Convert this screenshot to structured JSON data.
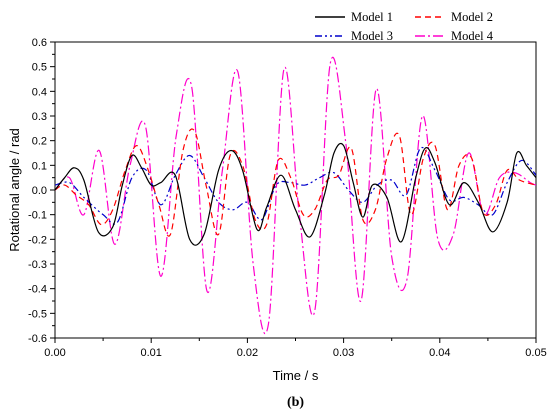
{
  "chart_data": {
    "type": "line",
    "xlabel": "Time / s",
    "ylabel": "Rotational angle / rad",
    "xlim": [
      0,
      0.05
    ],
    "ylim": [
      -0.6,
      0.6
    ],
    "xticks": [
      "0.00",
      "0.01",
      "0.02",
      "0.03",
      "0.04",
      "0.05"
    ],
    "yticks": [
      "-0.6",
      "-0.5",
      "-0.4",
      "-0.3",
      "-0.2",
      "-0.1",
      "0.0",
      "0.1",
      "0.2",
      "0.3",
      "0.4",
      "0.5",
      "0.6"
    ],
    "grid": false,
    "legend_position": "top-right",
    "panel_label": "(b)",
    "series": [
      {
        "name": "Model 1",
        "color": "#000000",
        "dash": "solid",
        "x": [
          0,
          0.001,
          0.002,
          0.003,
          0.0045,
          0.006,
          0.007,
          0.008,
          0.009,
          0.01,
          0.011,
          0.0125,
          0.014,
          0.0155,
          0.017,
          0.0183,
          0.0195,
          0.021,
          0.022,
          0.0235,
          0.025,
          0.0265,
          0.028,
          0.029,
          0.03,
          0.031,
          0.032,
          0.033,
          0.0345,
          0.036,
          0.0375,
          0.0385,
          0.0395,
          0.041,
          0.0425,
          0.044,
          0.0455,
          0.047,
          0.048,
          0.049,
          0.05
        ],
        "y": [
          0.0,
          0.05,
          0.09,
          0.04,
          -0.17,
          -0.15,
          0.02,
          0.14,
          0.09,
          0.02,
          0.03,
          0.06,
          -0.2,
          -0.18,
          0.08,
          0.16,
          0.08,
          -0.16,
          -0.07,
          0.06,
          -0.08,
          -0.19,
          -0.02,
          0.15,
          0.18,
          0.03,
          -0.11,
          0.02,
          -0.03,
          -0.21,
          0.05,
          0.17,
          0.11,
          -0.06,
          0.03,
          -0.05,
          -0.17,
          -0.05,
          0.15,
          0.1,
          0.05
        ]
      },
      {
        "name": "Model 2",
        "color": "#ff0000",
        "dash": "6 4",
        "x": [
          0,
          0.001,
          0.0022,
          0.0035,
          0.0048,
          0.006,
          0.0073,
          0.0085,
          0.0097,
          0.0108,
          0.012,
          0.0133,
          0.0145,
          0.0157,
          0.017,
          0.0182,
          0.0195,
          0.0208,
          0.022,
          0.0232,
          0.0245,
          0.0258,
          0.027,
          0.0283,
          0.0295,
          0.0308,
          0.032,
          0.0333,
          0.0345,
          0.0358,
          0.037,
          0.0383,
          0.0395,
          0.0408,
          0.042,
          0.0433,
          0.0445,
          0.0458,
          0.047,
          0.0483,
          0.05
        ],
        "y": [
          0.0,
          0.02,
          -0.02,
          -0.06,
          -0.14,
          -0.08,
          0.08,
          0.18,
          0.08,
          -0.06,
          -0.18,
          0.16,
          0.24,
          0.02,
          -0.18,
          0.14,
          0.1,
          -0.12,
          -0.14,
          0.12,
          0.05,
          -0.1,
          -0.08,
          0.04,
          0.06,
          0.17,
          -0.12,
          -0.08,
          0.13,
          0.22,
          -0.1,
          0.13,
          0.18,
          -0.08,
          0.1,
          0.13,
          -0.09,
          -0.06,
          0.08,
          0.04,
          0.02
        ]
      },
      {
        "name": "Model 3",
        "color": "#0000cc",
        "dash": "7 3 2 3 2 3",
        "x": [
          0,
          0.0015,
          0.003,
          0.005,
          0.0065,
          0.008,
          0.0095,
          0.011,
          0.0125,
          0.014,
          0.0155,
          0.017,
          0.0185,
          0.02,
          0.0215,
          0.023,
          0.0245,
          0.026,
          0.0275,
          0.029,
          0.0305,
          0.032,
          0.0335,
          0.035,
          0.0365,
          0.038,
          0.0395,
          0.041,
          0.0425,
          0.044,
          0.0455,
          0.047,
          0.0485,
          0.05
        ],
        "y": [
          0.02,
          0.03,
          -0.03,
          -0.1,
          -0.13,
          0.05,
          0.08,
          -0.06,
          0.06,
          0.14,
          0.05,
          -0.05,
          -0.08,
          -0.05,
          -0.12,
          0.02,
          0.03,
          0.02,
          0.05,
          0.07,
          0.0,
          -0.05,
          0.02,
          0.04,
          -0.02,
          0.17,
          0.08,
          -0.04,
          -0.03,
          -0.06,
          -0.1,
          0.03,
          0.12,
          0.06
        ]
      },
      {
        "name": "Model 4",
        "color": "#ff00cc",
        "dash": "10 3 2 3",
        "x": [
          0,
          0.0015,
          0.003,
          0.0046,
          0.0062,
          0.0078,
          0.0094,
          0.011,
          0.0126,
          0.0142,
          0.0158,
          0.0174,
          0.019,
          0.0206,
          0.0222,
          0.0238,
          0.0254,
          0.027,
          0.0286,
          0.0302,
          0.0318,
          0.0334,
          0.035,
          0.0366,
          0.0382,
          0.0398,
          0.0414,
          0.043,
          0.0446,
          0.0462,
          0.0478,
          0.0494,
          0.05
        ],
        "y": [
          0.0,
          0.05,
          -0.1,
          0.16,
          -0.22,
          0.1,
          0.26,
          -0.35,
          0.22,
          0.42,
          -0.41,
          0.08,
          0.48,
          -0.3,
          -0.54,
          0.49,
          -0.1,
          -0.49,
          0.51,
          0.2,
          -0.45,
          0.41,
          -0.27,
          -0.36,
          0.3,
          -0.2,
          -0.18,
          0.15,
          -0.1,
          0.05,
          0.07,
          0.03,
          0.02
        ]
      }
    ]
  }
}
